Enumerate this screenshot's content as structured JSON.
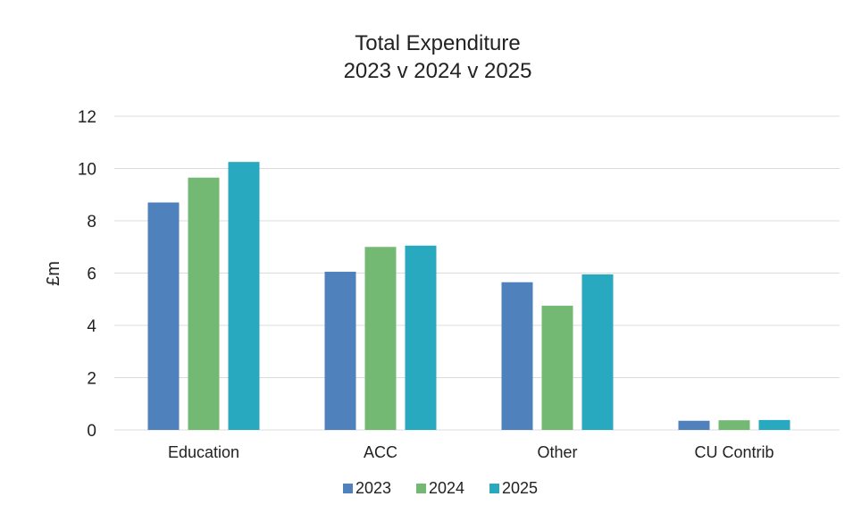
{
  "chart_data": {
    "type": "bar",
    "title": "Total Expenditure",
    "subtitle": "2023 v 2024 v 2025",
    "ylabel": "£m",
    "xlabel": "",
    "categories": [
      "Education",
      "ACC",
      "Other",
      "CU Contrib"
    ],
    "series": [
      {
        "name": "2023",
        "color": "#4f81bd",
        "values": [
          8.7,
          6.05,
          5.65,
          0.35
        ]
      },
      {
        "name": "2024",
        "color": "#73b873",
        "values": [
          9.65,
          7.0,
          4.75,
          0.37
        ]
      },
      {
        "name": "2025",
        "color": "#29a9bf",
        "values": [
          10.25,
          7.05,
          5.95,
          0.38
        ]
      }
    ],
    "ylim": [
      0,
      12
    ],
    "yticks": [
      "0",
      "2",
      "4",
      "6",
      "8",
      "10",
      "12"
    ],
    "grid": true,
    "legend_position": "bottom"
  }
}
